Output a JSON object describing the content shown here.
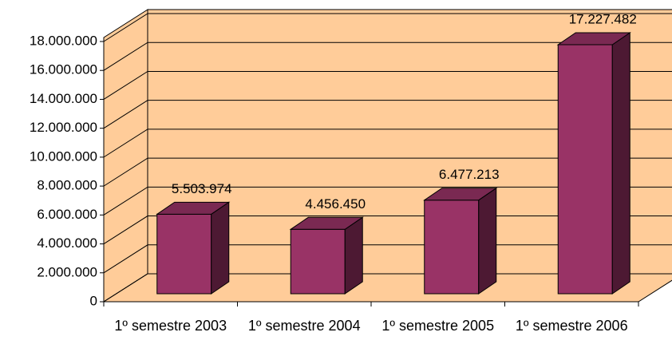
{
  "chart_data": {
    "type": "bar3d",
    "categories": [
      "1º semestre 2003",
      "1º semestre 2004",
      "1º semestre 2005",
      "1º semestre 2006"
    ],
    "values": [
      5503974,
      4456450,
      6477213,
      17227482
    ],
    "value_labels": [
      "5.503.974",
      "4.456.450",
      "6.477.213",
      "17.227.482"
    ],
    "color": "#993366",
    "ylim": [
      0,
      18000000
    ],
    "yticks": [
      0,
      {
        "value": 2000000,
        "label": "2.000.000"
      },
      {
        "value": 4000000,
        "label": "4.000.000"
      },
      {
        "value": 6000000,
        "label": "6.000.000"
      },
      {
        "value": 8000000,
        "label": "8.000.000"
      },
      {
        "value": 10000000,
        "label": "10.000.000"
      },
      {
        "value": 12000000,
        "label": "12.000.000"
      },
      {
        "value": 14000000,
        "label": "14.000.000"
      },
      {
        "value": 16000000,
        "label": "16.000.000"
      },
      {
        "value": 18000000,
        "label": "18.000.000"
      }
    ],
    "grid": true
  }
}
